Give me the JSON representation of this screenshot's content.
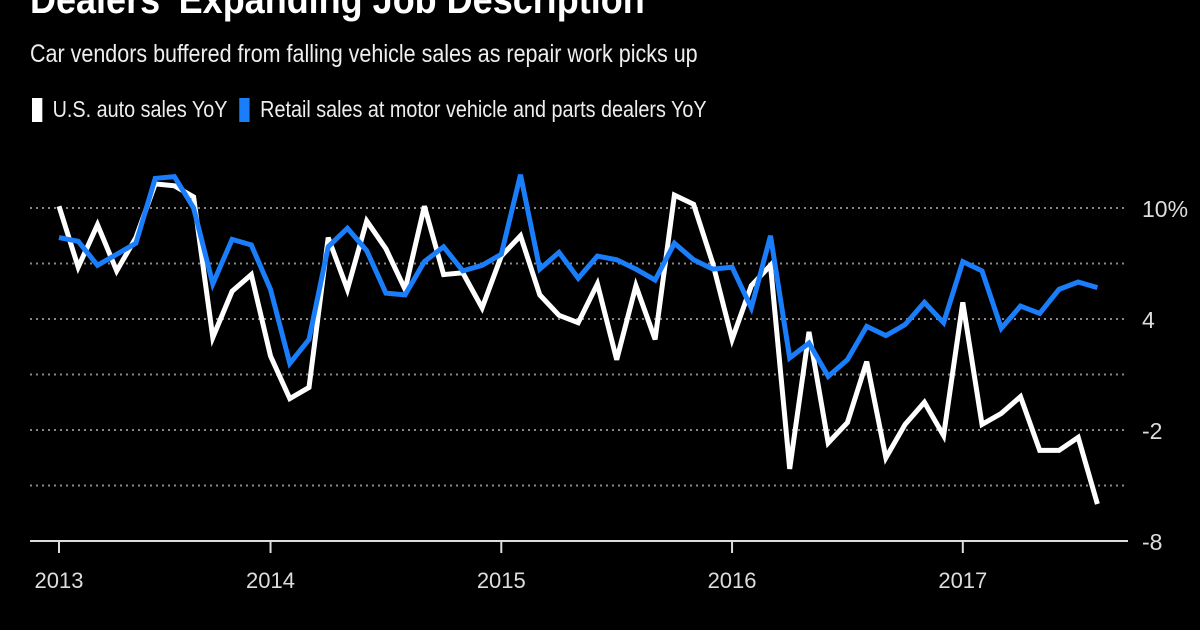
{
  "title": "Dealers' Expanding Job Description",
  "subtitle": "Car vendors buffered from falling vehicle sales as repair work picks up",
  "chart_data": {
    "type": "line",
    "title": "Dealers' Expanding Job Description",
    "subtitle": "Car vendors buffered from falling vehicle sales as repair work picks up",
    "xlabel": "",
    "ylabel": "",
    "ylim": [
      -8,
      10
    ],
    "yticks": [
      10,
      7,
      4,
      1,
      -2,
      -5,
      -8
    ],
    "ytick_labels": [
      "10%",
      "",
      "4",
      "",
      "-2",
      "",
      "-8"
    ],
    "xtick_labels": [
      "2013",
      "2014",
      "2015",
      "2016",
      "2017"
    ],
    "xtick_dates": [
      "2013-02",
      "2014-01",
      "2015-01",
      "2016-01",
      "2017-01"
    ],
    "grid": "horizontal dotted",
    "legend": "top-left",
    "x_start": "2013-02",
    "x_end": "2017-08",
    "x_frequency": "monthly",
    "series": [
      {
        "name": "U.S. auto sales YoY",
        "color": "#ffffff",
        "values": [
          10.1,
          6.8,
          9.1,
          6.6,
          8.4,
          11.3,
          11.2,
          10.6,
          3.0,
          5.5,
          6.4,
          2.0,
          -0.3,
          0.3,
          8.4,
          5.6,
          9.3,
          7.8,
          5.6,
          10.1,
          6.4,
          6.5,
          4.6,
          7.4,
          8.5,
          5.3,
          4.2,
          3.8,
          5.9,
          1.8,
          5.8,
          2.9,
          10.7,
          10.2,
          7.0,
          2.9,
          5.8,
          6.9,
          -4.1,
          3.3,
          -2.7,
          -1.6,
          1.7,
          -3.5,
          -1.7,
          -0.5,
          -2.3,
          4.9,
          -1.7,
          -1.1,
          -0.2,
          -3.1,
          -3.1,
          -2.4,
          -6.0
        ]
      },
      {
        "name": "Retail sales at motor vehicle and parts dealers YoY",
        "color": "#1a7efb",
        "values": [
          8.4,
          8.2,
          6.9,
          7.5,
          8.1,
          11.6,
          11.7,
          10.0,
          5.9,
          8.3,
          8.0,
          5.6,
          1.6,
          2.9,
          7.9,
          8.9,
          7.7,
          5.4,
          5.3,
          7.1,
          7.9,
          6.6,
          6.9,
          7.5,
          11.8,
          6.7,
          7.6,
          6.2,
          7.4,
          7.2,
          6.7,
          6.1,
          8.1,
          7.2,
          6.7,
          6.8,
          4.6,
          8.5,
          1.9,
          2.7,
          0.9,
          1.8,
          3.6,
          3.1,
          3.7,
          4.9,
          3.8,
          7.1,
          6.6,
          3.5,
          4.7,
          4.3,
          5.6,
          6.0,
          5.7
        ]
      }
    ]
  }
}
